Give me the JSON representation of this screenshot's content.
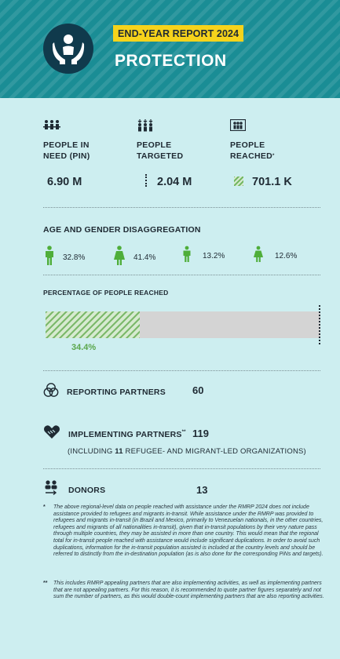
{
  "header": {
    "badge": "END-YEAR REPORT 2024",
    "title": "PROTECTION",
    "logo_icon": "hands-holding-person-icon"
  },
  "summary": [
    {
      "icon": "people-group-icon",
      "label_l1": "PEOPLE IN",
      "label_l2": "NEED (PIN)",
      "value": "6.90 M"
    },
    {
      "icon": "people-targeted-icon",
      "label_l1": "PEOPLE",
      "label_l2": "TARGETED",
      "value": "2.04 M"
    },
    {
      "icon": "people-reached-icon",
      "label_l1": "PEOPLE",
      "label_l2": "REACHED",
      "label_mark": "*",
      "value": "701.1 K"
    }
  ],
  "age_gender": {
    "title": "AGE AND GENDER DISAGGREGATION",
    "items": [
      {
        "icon": "man-icon",
        "value": "32.8%"
      },
      {
        "icon": "woman-icon",
        "value": "41.4%"
      },
      {
        "icon": "boy-icon",
        "value": "13.2%"
      },
      {
        "icon": "girl-icon",
        "value": "12.6%"
      }
    ]
  },
  "reached": {
    "title": "PERCENTAGE OF PEOPLE REACHED",
    "percent_label": "34.4%",
    "fraction": 0.344
  },
  "partners": {
    "reporting_label": "REPORTING PARTNERS",
    "reporting_value": "60",
    "implementing_label": "IMPLEMENTING PARTNERS",
    "implementing_mark": "**",
    "implementing_value": "119",
    "implementing_note_pre": "(INCLUDING ",
    "implementing_note_num": "11",
    "implementing_note_post": " REFUGEE- AND MIGRANT-LED ORGANIZATIONS)",
    "donors_label": "DONORS",
    "donors_value": "13"
  },
  "footnotes": [
    {
      "mark": "*",
      "text": "The above regional-level data on people reached with assistance under the RMRP 2024 does not include assistance provided to refugees and migrants in-transit. While assistance under the RMRP was provided to refugees and migrants in-transit (in Brazil and Mexico, primarily to Venezuelan nationals, in the other countries, refugees and migrants of all nationalities in-transit), given that in-transit populations by their very nature pass through multiple countries, they may be assisted in more than one country. This would mean that the regional total for in-transit people reached with assistance would include significant duplications. In order to avoid such duplications, information for the in-transit population assisted is included at the country levels and should be referred to distinctly from the in-destination population (as is also done for the corresponding PiNs and targets)."
    },
    {
      "mark": "**",
      "text": "This includes RMRP appealing partners that are also implementing activities, as well as implementing partners that are not appealing partners. For this reason, it is recommended to quote partner figures separately and not sum the number of partners, as this would double-count implementing partners that are also reporting activities."
    }
  ],
  "colors": {
    "header": "#1a8d95",
    "accent_yellow": "#f6d31b",
    "green": "#5aa64a",
    "background": "#cdeef0"
  }
}
